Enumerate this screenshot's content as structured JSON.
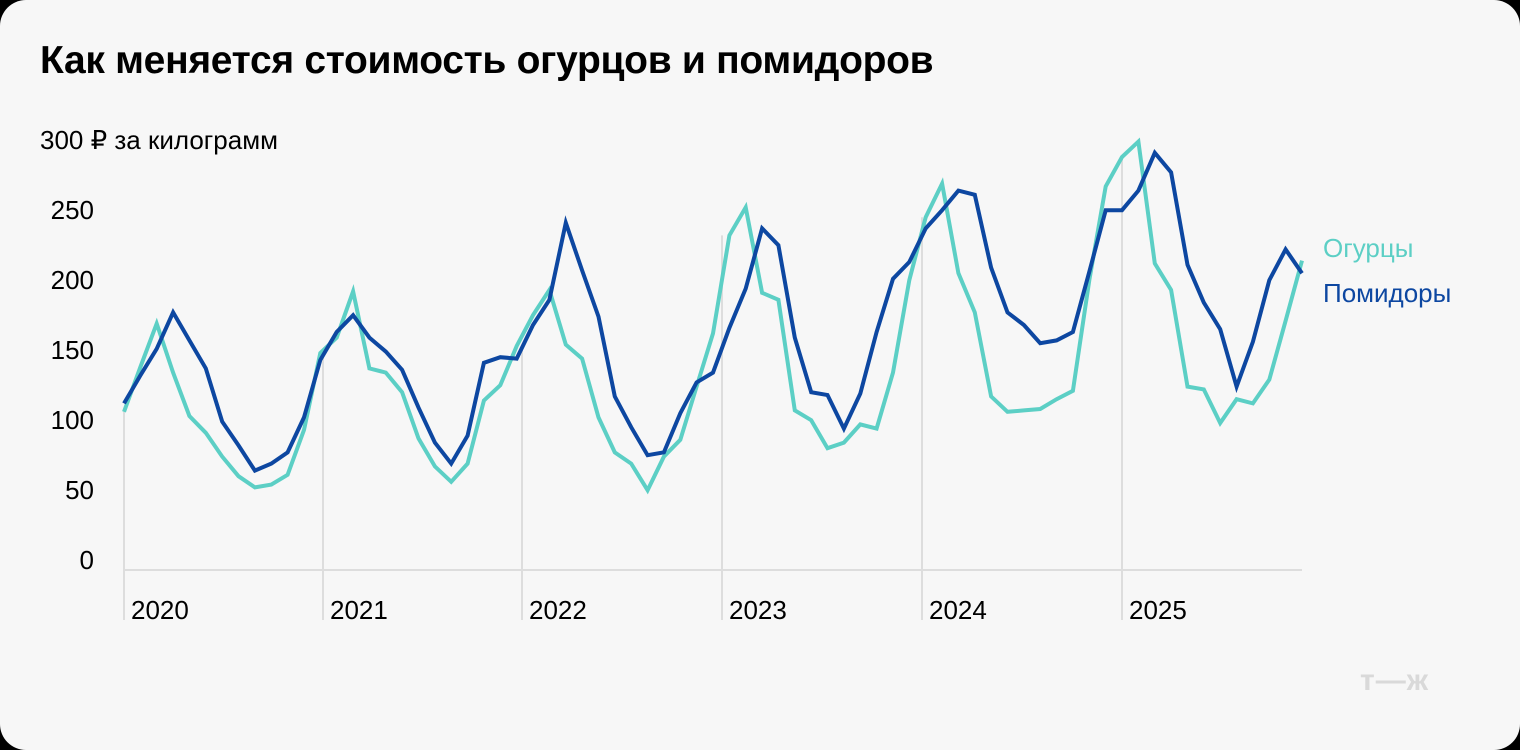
{
  "title": "Как меняется стоимость огурцов и помидоров",
  "logo": "т—ж",
  "colors": {
    "cucumbers": "#5ccfc5",
    "tomatoes": "#0d47a1",
    "grid": "#dddddd",
    "background": "#f7f7f7"
  },
  "chart_data": {
    "type": "line",
    "title": "Как меняется стоимость огурцов и помидоров",
    "ylabel": "₽ за килограмм",
    "y_unit_label": "300 ₽ за килограмм",
    "ylim": [
      0,
      300
    ],
    "y_ticks": [
      0,
      50,
      100,
      150,
      200,
      250,
      300
    ],
    "x_tick_labels": [
      "2020",
      "2021",
      "2022",
      "2023",
      "2024",
      "2025"
    ],
    "x_frequency": "monthly",
    "grid": "vertical year lines + baseline",
    "legend_position": "right",
    "series": [
      {
        "name": "Огурцы",
        "color": "#5ccfc5",
        "values": [
          113,
          145,
          176,
          141,
          110,
          98,
          81,
          67,
          59,
          61,
          68,
          100,
          155,
          166,
          199,
          144,
          141,
          127,
          94,
          74,
          63,
          76,
          121,
          132,
          160,
          182,
          200,
          161,
          151,
          109,
          84,
          76,
          57,
          81,
          93,
          131,
          169,
          239,
          259,
          198,
          193,
          114,
          107,
          87,
          91,
          104,
          101,
          141,
          207,
          252,
          276,
          212,
          184,
          124,
          113,
          114,
          115,
          122,
          128,
          207,
          274,
          295,
          306,
          219,
          200,
          131,
          129,
          105,
          122,
          119,
          136,
          178,
          221
        ]
      },
      {
        "name": "Помидоры",
        "color": "#0d47a1",
        "values": [
          119,
          139,
          158,
          184,
          164,
          144,
          106,
          89,
          71,
          76,
          84,
          109,
          150,
          170,
          182,
          166,
          156,
          143,
          116,
          91,
          76,
          96,
          148,
          152,
          151,
          175,
          193,
          248,
          214,
          181,
          124,
          102,
          82,
          84,
          112,
          134,
          141,
          173,
          201,
          244,
          232,
          166,
          127,
          125,
          101,
          126,
          170,
          208,
          220,
          244,
          257,
          271,
          268,
          216,
          184,
          175,
          162,
          164,
          170,
          213,
          257,
          257,
          271,
          298,
          284,
          218,
          191,
          172,
          131,
          163,
          207,
          229,
          212
        ]
      }
    ]
  },
  "axis": {
    "y_labels": [
      "250",
      "200",
      "150",
      "100",
      "50",
      "0"
    ],
    "x_labels": [
      "2020",
      "2021",
      "2022",
      "2023",
      "2024",
      "2025"
    ]
  },
  "legend": {
    "cucumbers": "Огурцы",
    "tomatoes": "Помидоры"
  }
}
